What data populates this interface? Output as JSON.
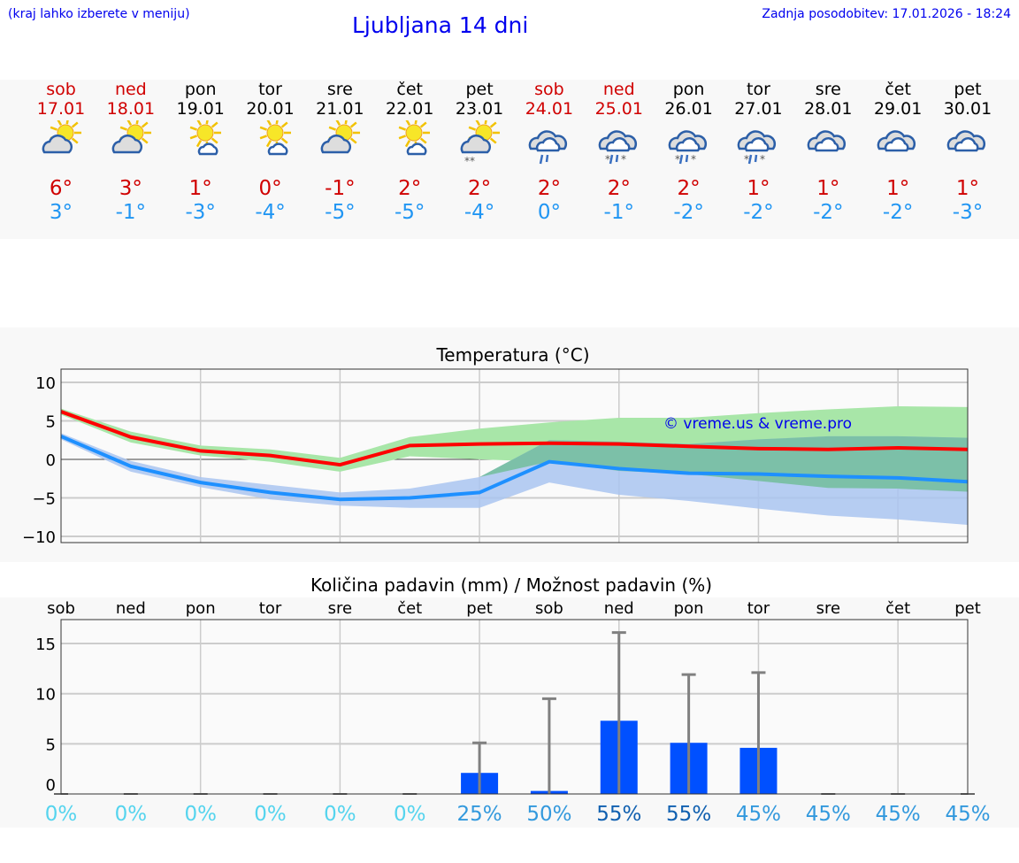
{
  "header": {
    "hint": "(kraj lahko izberete v meniju)",
    "title": "Ljubljana 14 dni",
    "updated": "Zadnja posodobitev: 17.01.2026 - 18:24"
  },
  "days": [
    {
      "name": "sob",
      "date": "17.01",
      "weekend": true,
      "icon": "partly-cloudy-icon",
      "max": "6°",
      "min": "3°"
    },
    {
      "name": "ned",
      "date": "18.01",
      "weekend": true,
      "icon": "partly-cloudy-icon",
      "max": "3°",
      "min": "-1°"
    },
    {
      "name": "pon",
      "date": "19.01",
      "weekend": false,
      "icon": "mostly-sunny-icon",
      "max": "1°",
      "min": "-3°"
    },
    {
      "name": "tor",
      "date": "20.01",
      "weekend": false,
      "icon": "mostly-sunny-icon",
      "max": "0°",
      "min": "-4°"
    },
    {
      "name": "sre",
      "date": "21.01",
      "weekend": false,
      "icon": "partly-cloudy-icon",
      "max": "-1°",
      "min": "-5°"
    },
    {
      "name": "čet",
      "date": "22.01",
      "weekend": false,
      "icon": "mostly-sunny-icon",
      "max": "2°",
      "min": "-5°"
    },
    {
      "name": "pet",
      "date": "23.01",
      "weekend": false,
      "icon": "partly-cloudy-snow-icon",
      "max": "2°",
      "min": "-4°"
    },
    {
      "name": "sob",
      "date": "24.01",
      "weekend": true,
      "icon": "cloudy-rain-icon",
      "max": "2°",
      "min": "0°"
    },
    {
      "name": "ned",
      "date": "25.01",
      "weekend": true,
      "icon": "cloudy-sleet-icon",
      "max": "2°",
      "min": "-1°"
    },
    {
      "name": "pon",
      "date": "26.01",
      "weekend": false,
      "icon": "cloudy-sleet-icon",
      "max": "2°",
      "min": "-2°"
    },
    {
      "name": "tor",
      "date": "27.01",
      "weekend": false,
      "icon": "cloudy-sleet-icon",
      "max": "1°",
      "min": "-2°"
    },
    {
      "name": "sre",
      "date": "28.01",
      "weekend": false,
      "icon": "overcast-icon",
      "max": "1°",
      "min": "-2°"
    },
    {
      "name": "čet",
      "date": "29.01",
      "weekend": false,
      "icon": "overcast-icon",
      "max": "1°",
      "min": "-2°"
    },
    {
      "name": "pet",
      "date": "30.01",
      "weekend": false,
      "icon": "overcast-icon",
      "max": "1°",
      "min": "-3°"
    }
  ],
  "colors": {
    "max": "#ff0000",
    "min": "#1e90ff",
    "max_band": "#a8e6a8",
    "min_band": "#a9c4f0",
    "overlap": "#7cc0a8",
    "bar": "#0050ff",
    "error": "#808080",
    "pct_low": "#55d4ee",
    "pct_mid": "#3399dd",
    "pct_high": "#1060b0"
  },
  "chart_data": [
    {
      "type": "line",
      "title": "Temperatura (°C)",
      "watermark": "© vreme.us & vreme.pro",
      "ylim": [
        -11,
        12
      ],
      "yticks": [
        "10",
        "5",
        "0",
        "−5",
        "−10"
      ],
      "yticks_values": [
        10,
        5,
        0,
        -5,
        -10
      ],
      "grid": true,
      "series": [
        {
          "kind": "max",
          "values": [
            6.2,
            2.9,
            1.1,
            0.5,
            -0.7,
            1.8,
            2.0,
            2.1,
            2.0,
            1.7,
            1.4,
            1.3,
            1.5,
            1.3
          ],
          "band_low": [
            5.8,
            2.2,
            0.5,
            -0.3,
            -1.6,
            0.4,
            0.0,
            -0.3,
            -1.5,
            -1.9,
            -2.8,
            -3.7,
            -3.8,
            -4.2
          ],
          "band_high": [
            6.6,
            3.6,
            1.8,
            1.3,
            0.2,
            2.9,
            4.0,
            4.8,
            5.4,
            5.4,
            6.0,
            6.5,
            6.9,
            6.8
          ]
        },
        {
          "kind": "min",
          "values": [
            3.0,
            -0.9,
            -3.0,
            -4.3,
            -5.2,
            -5.0,
            -4.3,
            -0.3,
            -1.2,
            -1.8,
            -1.9,
            -2.2,
            -2.4,
            -2.9
          ],
          "band_low": [
            2.6,
            -1.6,
            -3.6,
            -5.2,
            -6.0,
            -6.3,
            -6.3,
            -3.0,
            -4.6,
            -5.4,
            -6.4,
            -7.3,
            -7.8,
            -8.5
          ],
          "band_high": [
            3.4,
            -0.2,
            -2.3,
            -3.3,
            -4.3,
            -3.8,
            -2.3,
            2.5,
            2.3,
            2.0,
            2.6,
            3.0,
            3.0,
            2.8
          ]
        }
      ]
    },
    {
      "type": "bar",
      "title": "Količina padavin (mm) / Možnost padavin (%)",
      "categories": [
        "sob",
        "ned",
        "pon",
        "tor",
        "sre",
        "čet",
        "pet",
        "sob",
        "ned",
        "pon",
        "tor",
        "sre",
        "čet",
        "pet"
      ],
      "ylim": [
        0,
        17.5
      ],
      "yticks": [
        "15",
        "10",
        "5",
        "0"
      ],
      "yticks_values": [
        15,
        10,
        5,
        0
      ],
      "values": [
        0,
        0,
        0,
        0,
        0,
        0,
        2.1,
        0.3,
        7.3,
        5.1,
        4.6,
        0,
        0,
        0
      ],
      "error_high": [
        0,
        0,
        0,
        0,
        0,
        0,
        5.1,
        9.5,
        16.1,
        11.9,
        12.1,
        0,
        0,
        0
      ],
      "probability": [
        "0%",
        "0%",
        "0%",
        "0%",
        "0%",
        "0%",
        "25%",
        "50%",
        "55%",
        "55%",
        "45%",
        "45%",
        "45%",
        "45%"
      ]
    }
  ]
}
